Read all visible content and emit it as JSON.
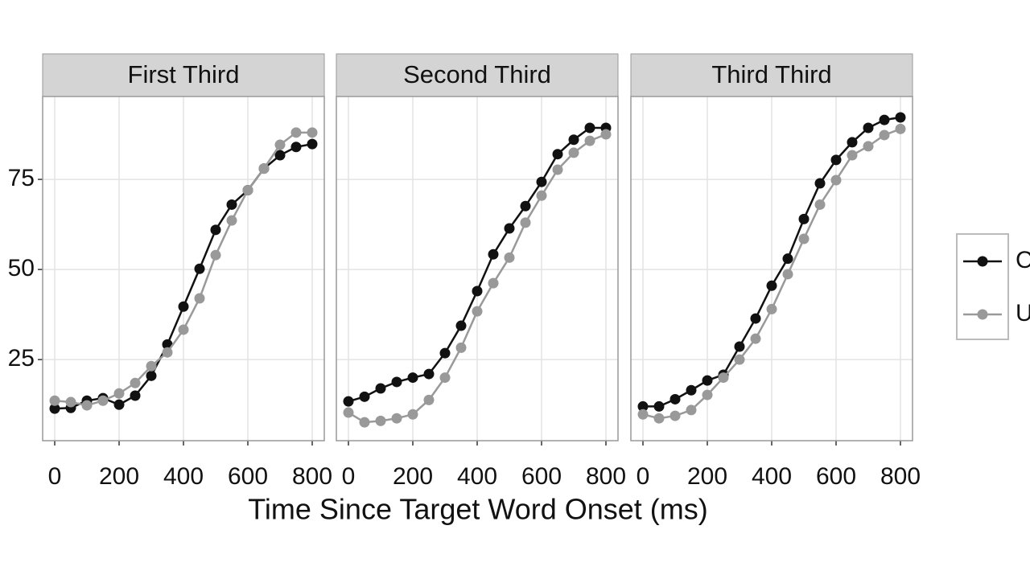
{
  "chart_data": [
    {
      "type": "line",
      "title": "First Third",
      "x": [
        0,
        50,
        100,
        150,
        200,
        250,
        300,
        350,
        400,
        450,
        500,
        550,
        600,
        650,
        700,
        750,
        800
      ],
      "series": [
        {
          "name": "C",
          "color": "#111111",
          "values": [
            11.4,
            11.6,
            13.6,
            14.3,
            12.5,
            15,
            20.5,
            29.2,
            39.7,
            50.2,
            61,
            68,
            72,
            78,
            81.7,
            84,
            84.8
          ]
        },
        {
          "name": "U",
          "color": "#999999",
          "values": [
            13.6,
            13.2,
            12.3,
            13.6,
            15.6,
            18.5,
            23.2,
            27,
            33.3,
            42,
            54,
            63.6,
            72,
            78,
            84.6,
            88,
            88
          ]
        }
      ],
      "xlim": [
        -37.5,
        837.5
      ],
      "ylim": [
        2.5,
        98
      ],
      "xticks": [
        0,
        200,
        400,
        600,
        800
      ],
      "yticks": [
        25,
        50,
        75
      ],
      "grid": true
    },
    {
      "type": "line",
      "title": "Second Third",
      "x": [
        0,
        50,
        100,
        150,
        200,
        250,
        300,
        350,
        400,
        450,
        500,
        550,
        600,
        650,
        700,
        750,
        800
      ],
      "series": [
        {
          "name": "C",
          "color": "#111111",
          "values": [
            13.4,
            14.7,
            17,
            18.8,
            20,
            21,
            26.8,
            34.4,
            44,
            54.2,
            61.4,
            67.6,
            74.3,
            82,
            86,
            89.3,
            89.3
          ]
        },
        {
          "name": "U",
          "color": "#999999",
          "values": [
            10.3,
            7.6,
            8,
            8.7,
            9.8,
            13.8,
            20,
            28.3,
            38.4,
            46.2,
            53.3,
            63,
            70.5,
            77.7,
            82.4,
            85.7,
            87.5
          ]
        }
      ],
      "xlim": [
        -37.5,
        837.5
      ],
      "ylim": [
        2.5,
        98
      ],
      "xticks": [
        0,
        200,
        400,
        600,
        800
      ],
      "yticks": [
        25,
        50,
        75
      ],
      "grid": true
    },
    {
      "type": "line",
      "title": "Third Third",
      "x": [
        0,
        50,
        100,
        150,
        200,
        250,
        300,
        350,
        400,
        450,
        500,
        550,
        600,
        650,
        700,
        750,
        800
      ],
      "series": [
        {
          "name": "C",
          "color": "#111111",
          "values": [
            12,
            12,
            14,
            16.5,
            19.2,
            20.8,
            28.6,
            36.4,
            45.5,
            53,
            64,
            73.9,
            80.4,
            85.3,
            89.3,
            91.5,
            92.2
          ]
        },
        {
          "name": "U",
          "color": "#999999",
          "values": [
            9.8,
            8.7,
            9.4,
            11,
            15.2,
            20,
            25,
            30.8,
            39,
            48.7,
            58.5,
            68,
            74.8,
            81.7,
            84.2,
            87.3,
            89
          ]
        }
      ],
      "xlim": [
        -37.5,
        837.5
      ],
      "ylim": [
        2.5,
        98
      ],
      "xticks": [
        0,
        200,
        400,
        600,
        800
      ],
      "yticks": [
        25,
        50,
        75
      ],
      "grid": true
    }
  ],
  "xlabel": "Time Since Target Word Onset (ms)"
}
